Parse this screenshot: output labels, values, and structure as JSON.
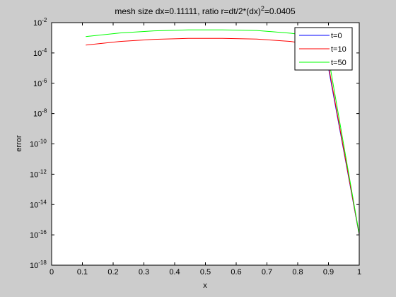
{
  "chart_data": {
    "type": "line",
    "title": "mesh size dx=0.11111, ratio r=dt/2*(dx)",
    "title_sup": "2",
    "title_tail": "=0.0405",
    "xlabel": "x",
    "ylabel": "error",
    "xlim": [
      0,
      1
    ],
    "ylim_exp": [
      -18,
      -2
    ],
    "yscale": "log",
    "grid": false,
    "legend_position": "top-right",
    "xticks": [
      "0",
      "0.1",
      "0.2",
      "0.3",
      "0.4",
      "0.5",
      "0.6",
      "0.7",
      "0.8",
      "0.9",
      "1"
    ],
    "yticks": [
      {
        "base": "10",
        "exp": "-2"
      },
      {
        "base": "10",
        "exp": "-4"
      },
      {
        "base": "10",
        "exp": "-6"
      },
      {
        "base": "10",
        "exp": "-8"
      },
      {
        "base": "10",
        "exp": "-10"
      },
      {
        "base": "10",
        "exp": "-12"
      },
      {
        "base": "10",
        "exp": "-14"
      },
      {
        "base": "10",
        "exp": "-16"
      },
      {
        "base": "10",
        "exp": "-18"
      }
    ],
    "series": [
      {
        "name": "t=0",
        "color": "#0000ff",
        "x": [
          0.9,
          1.0
        ],
        "log10_y": [
          -5.0,
          -16.0
        ]
      },
      {
        "name": "t=10",
        "color": "#ff0000",
        "x": [
          0.1111,
          0.2222,
          0.3333,
          0.4444,
          0.5556,
          0.6667,
          0.7778,
          0.8889,
          1.0
        ],
        "log10_y": [
          -3.48,
          -3.24,
          -3.1,
          -3.04,
          -3.04,
          -3.08,
          -3.24,
          -3.6,
          -15.98
        ]
      },
      {
        "name": "t=50",
        "color": "#00ff00",
        "x": [
          0.1111,
          0.2222,
          0.3333,
          0.4444,
          0.5556,
          0.6667,
          0.7778,
          0.8889,
          1.0
        ],
        "log10_y": [
          -2.92,
          -2.68,
          -2.54,
          -2.48,
          -2.48,
          -2.52,
          -2.7,
          -3.0,
          -15.95
        ]
      }
    ]
  }
}
